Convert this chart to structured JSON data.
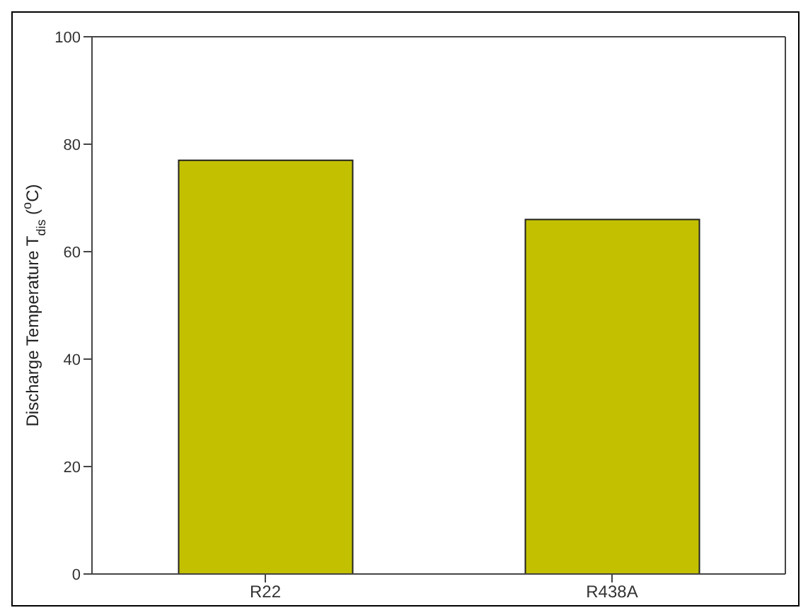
{
  "chart_data": {
    "type": "bar",
    "ylabel": "Discharge Temperature T$_{dis}$ ($^{o}$C)",
    "categories": [
      "R22",
      "R438A"
    ],
    "values": [
      77,
      66
    ],
    "color": "#c3c000",
    "ylim": [
      0,
      100
    ],
    "yticks": [
      0,
      20,
      40,
      60,
      80,
      100
    ],
    "grid": false
  }
}
